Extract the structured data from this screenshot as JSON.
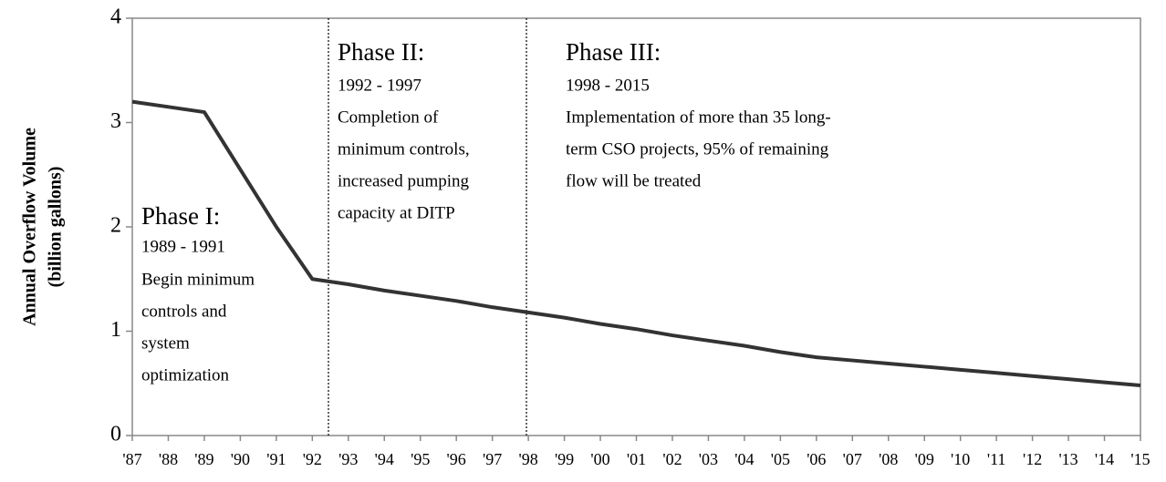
{
  "chart_data": {
    "type": "line",
    "y_label": [
      "Annual Overflow Volume",
      "(billion gallons)"
    ],
    "categories": [
      "'87",
      "'88",
      "'89",
      "'90",
      "'91",
      "'92",
      "'93",
      "'94",
      "'95",
      "'96",
      "'97",
      "'98",
      "'99",
      "'00",
      "'01",
      "'02",
      "'03",
      "'04",
      "'05",
      "'06",
      "'07",
      "'08",
      "'09",
      "'10",
      "'11",
      "'12",
      "'13",
      "'14",
      "'15"
    ],
    "series": [
      {
        "color": "#333333",
        "values": [
          3.2,
          3.15,
          3.1,
          2.55,
          2.0,
          1.5,
          1.45,
          1.39,
          1.34,
          1.29,
          1.23,
          1.18,
          1.13,
          1.07,
          1.02,
          0.96,
          0.91,
          0.86,
          0.8,
          0.75,
          0.72,
          0.69,
          0.66,
          0.63,
          0.6,
          0.57,
          0.54,
          0.51,
          0.48
        ]
      }
    ],
    "ylim": [
      0,
      4
    ],
    "yticks": [
      0,
      1,
      2,
      3,
      4
    ],
    "grid": false,
    "annotations": [
      {
        "title": "Phase I:",
        "years": "1989 - 1991",
        "lines": [
          "Begin minimum",
          "controls and",
          "system",
          "optimization"
        ]
      },
      {
        "title": "Phase II:",
        "years": "1992 - 1997",
        "lines": [
          "Completion of",
          "minimum controls,",
          "increased pumping",
          "capacity at DITP"
        ]
      },
      {
        "title": "Phase III:",
        "years": "1998 - 2015",
        "lines": [
          "Implementation of more than 35 long-",
          "term CSO projects, 95% of remaining",
          "flow will be treated"
        ]
      }
    ]
  }
}
